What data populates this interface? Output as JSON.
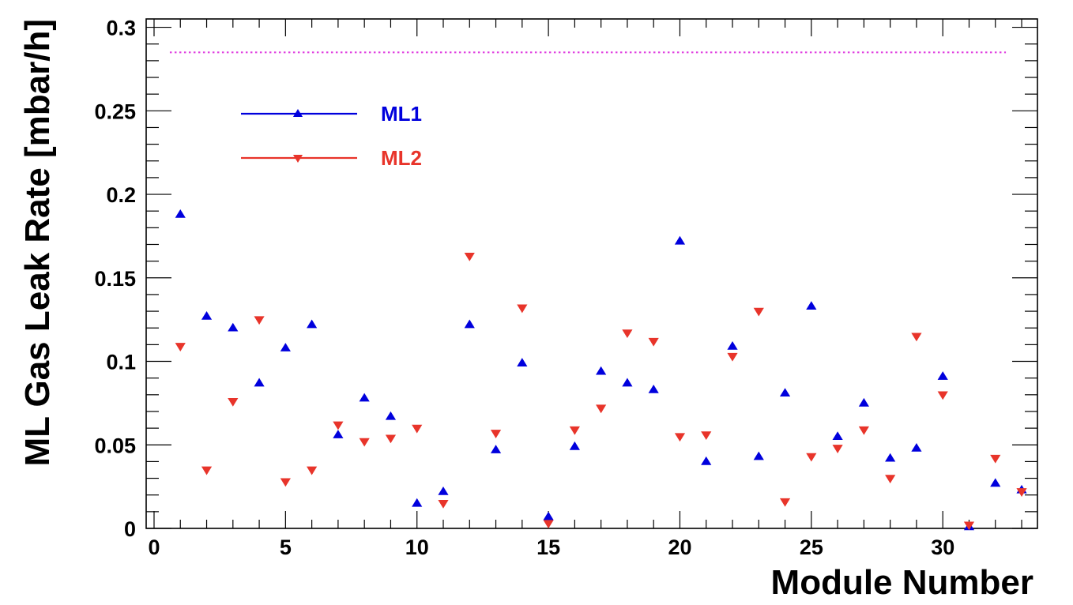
{
  "chart_data": {
    "type": "scatter",
    "title": "",
    "xlabel": "Module Number",
    "ylabel": "ML Gas Leak Rate [mbar/h]",
    "xlim": [
      -0.3,
      33.6
    ],
    "ylim": [
      0,
      0.305
    ],
    "x_ticks": [
      0,
      5,
      10,
      15,
      20,
      25,
      30
    ],
    "x_tick_labels": [
      "0",
      "5",
      "10",
      "15",
      "20",
      "25",
      "30"
    ],
    "y_ticks": [
      0,
      0.05,
      0.1,
      0.15,
      0.2,
      0.25,
      0.3
    ],
    "y_tick_labels": [
      "0",
      "0.05",
      "0.1",
      "0.15",
      "0.2",
      "0.25",
      "0.3"
    ],
    "grid": false,
    "legend_position": "top-left",
    "reference_line": {
      "y": 0.285,
      "x_range": [
        0.6,
        32.4
      ],
      "color": "#e040e0",
      "style": "dotted"
    },
    "series": [
      {
        "name": "ML1",
        "color": "#0000dd",
        "marker": "triangle-up",
        "x": [
          1,
          2,
          3,
          4,
          5,
          6,
          7,
          8,
          9,
          10,
          11,
          12,
          13,
          14,
          15,
          16,
          17,
          18,
          19,
          20,
          21,
          22,
          23,
          24,
          25,
          26,
          27,
          28,
          29,
          30,
          31,
          32,
          33
        ],
        "values": [
          0.188,
          0.127,
          0.12,
          0.087,
          0.108,
          0.122,
          0.056,
          0.078,
          0.067,
          0.015,
          0.022,
          0.122,
          0.047,
          0.099,
          0.007,
          0.049,
          0.094,
          0.087,
          0.083,
          0.172,
          0.04,
          0.109,
          0.043,
          0.081,
          0.133,
          0.055,
          0.075,
          0.042,
          0.048,
          0.091,
          0.001,
          0.027,
          0.023
        ]
      },
      {
        "name": "ML2",
        "color": "#e8342a",
        "marker": "triangle-down",
        "x": [
          1,
          2,
          3,
          4,
          5,
          6,
          7,
          8,
          9,
          10,
          11,
          12,
          13,
          14,
          15,
          16,
          17,
          18,
          19,
          20,
          21,
          22,
          23,
          24,
          25,
          26,
          27,
          28,
          29,
          30,
          31,
          32,
          33
        ],
        "values": [
          0.109,
          0.035,
          0.076,
          0.125,
          0.028,
          0.035,
          0.062,
          0.052,
          0.054,
          0.06,
          0.015,
          0.163,
          0.057,
          0.132,
          0.003,
          0.059,
          0.072,
          0.117,
          0.112,
          0.055,
          0.056,
          0.103,
          0.13,
          0.016,
          0.043,
          0.048,
          0.059,
          0.03,
          0.115,
          0.08,
          0.002,
          0.042,
          0.022
        ]
      }
    ]
  }
}
